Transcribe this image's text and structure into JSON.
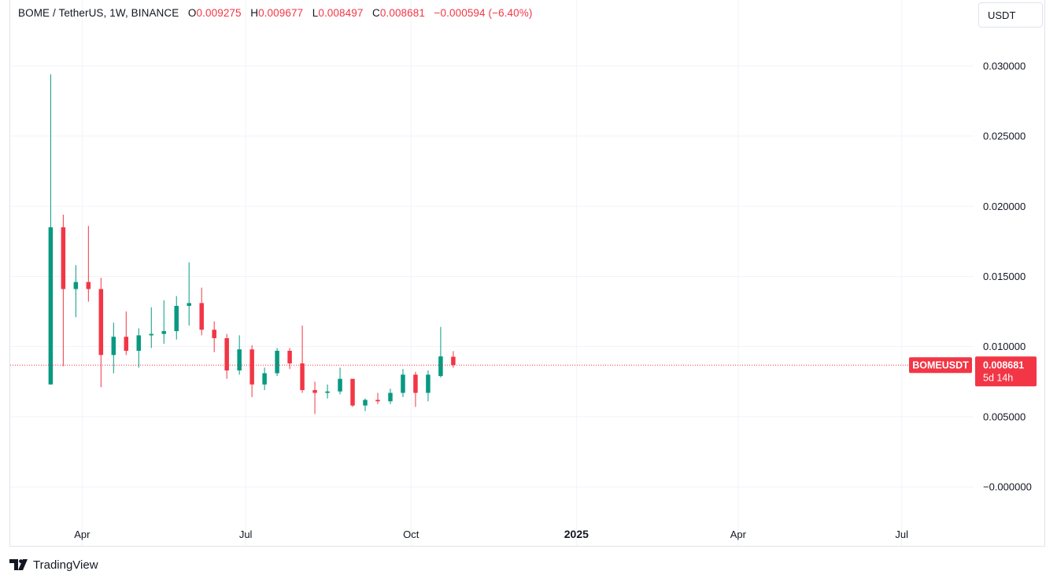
{
  "legend": {
    "symbol_line": "BOME / TetherUS, 1W, BINANCE",
    "o_label": "O",
    "o_value": "0.009275",
    "h_label": "H",
    "h_value": "0.009677",
    "l_label": "L",
    "l_value": "0.008497",
    "c_label": "C",
    "c_value": "0.008681",
    "change": "−0.000594 (−6.40%)"
  },
  "currency_button": "USDT",
  "footer": {
    "brand": "TradingView"
  },
  "colors": {
    "up": "#089981",
    "down": "#f23645",
    "grid": "#f0f3fa",
    "price_line": "#f23645"
  },
  "chart_data": {
    "type": "candlestick",
    "symbol": "BOMEUSDT",
    "interval": "1W",
    "y_ticks": [
      "0.030000",
      "0.025000",
      "0.020000",
      "0.015000",
      "0.010000",
      "0.005000",
      "−0.000000"
    ],
    "ylim": [
      -0.0042,
      0.0347
    ],
    "x_ticks": [
      {
        "label": "Apr",
        "date": "2024-04-01",
        "bold": false
      },
      {
        "label": "Jul",
        "date": "2024-07-01",
        "bold": false
      },
      {
        "label": "Oct",
        "date": "2024-10-01",
        "bold": false
      },
      {
        "label": "2025",
        "date": "2025-01-01",
        "bold": true
      },
      {
        "label": "Apr",
        "date": "2025-04-01",
        "bold": false
      },
      {
        "label": "Jul",
        "date": "2025-07-01",
        "bold": false
      }
    ],
    "xlim": [
      "2024-02-21",
      "2025-08-10"
    ],
    "last_price": {
      "label": "BOMEUSDT",
      "value": "0.008681",
      "countdown": "5d 14h",
      "price": 0.008681
    },
    "candles": [
      {
        "date": "2024-03-11",
        "o": 0.0073,
        "h": 0.0294,
        "l": 0.0073,
        "c": 0.0185
      },
      {
        "date": "2024-03-18",
        "o": 0.0185,
        "h": 0.0194,
        "l": 0.0086,
        "c": 0.0141
      },
      {
        "date": "2024-03-25",
        "o": 0.0141,
        "h": 0.0158,
        "l": 0.0121,
        "c": 0.0146
      },
      {
        "date": "2024-04-01",
        "o": 0.0146,
        "h": 0.0186,
        "l": 0.0132,
        "c": 0.0141
      },
      {
        "date": "2024-04-08",
        "o": 0.0141,
        "h": 0.0149,
        "l": 0.0071,
        "c": 0.0094
      },
      {
        "date": "2024-04-15",
        "o": 0.0094,
        "h": 0.0117,
        "l": 0.0081,
        "c": 0.0107
      },
      {
        "date": "2024-04-22",
        "o": 0.0107,
        "h": 0.0125,
        "l": 0.0094,
        "c": 0.0097
      },
      {
        "date": "2024-04-29",
        "o": 0.0097,
        "h": 0.0113,
        "l": 0.0085,
        "c": 0.0108
      },
      {
        "date": "2024-05-06",
        "o": 0.0108,
        "h": 0.0128,
        "l": 0.0099,
        "c": 0.0109
      },
      {
        "date": "2024-05-13",
        "o": 0.0109,
        "h": 0.0133,
        "l": 0.0102,
        "c": 0.0111
      },
      {
        "date": "2024-05-20",
        "o": 0.0111,
        "h": 0.0136,
        "l": 0.0105,
        "c": 0.0129
      },
      {
        "date": "2024-05-27",
        "o": 0.0129,
        "h": 0.016,
        "l": 0.0115,
        "c": 0.0131
      },
      {
        "date": "2024-06-03",
        "o": 0.0131,
        "h": 0.0142,
        "l": 0.0108,
        "c": 0.0112
      },
      {
        "date": "2024-06-10",
        "o": 0.0112,
        "h": 0.0118,
        "l": 0.0096,
        "c": 0.0106
      },
      {
        "date": "2024-06-17",
        "o": 0.0106,
        "h": 0.0109,
        "l": 0.0077,
        "c": 0.0083
      },
      {
        "date": "2024-06-24",
        "o": 0.0083,
        "h": 0.0108,
        "l": 0.008,
        "c": 0.0098
      },
      {
        "date": "2024-07-01",
        "o": 0.0098,
        "h": 0.0101,
        "l": 0.0064,
        "c": 0.0073
      },
      {
        "date": "2024-07-08",
        "o": 0.0073,
        "h": 0.0085,
        "l": 0.0069,
        "c": 0.0081
      },
      {
        "date": "2024-07-15",
        "o": 0.0081,
        "h": 0.0099,
        "l": 0.0079,
        "c": 0.0097
      },
      {
        "date": "2024-07-22",
        "o": 0.0097,
        "h": 0.0099,
        "l": 0.0084,
        "c": 0.0088
      },
      {
        "date": "2024-07-29",
        "o": 0.0088,
        "h": 0.0115,
        "l": 0.0067,
        "c": 0.0069
      },
      {
        "date": "2024-08-05",
        "o": 0.0069,
        "h": 0.0075,
        "l": 0.0052,
        "c": 0.0067
      },
      {
        "date": "2024-08-12",
        "o": 0.0067,
        "h": 0.0073,
        "l": 0.0063,
        "c": 0.0068
      },
      {
        "date": "2024-08-19",
        "o": 0.0068,
        "h": 0.0085,
        "l": 0.0066,
        "c": 0.0077
      },
      {
        "date": "2024-08-26",
        "o": 0.0077,
        "h": 0.0077,
        "l": 0.0057,
        "c": 0.0058
      },
      {
        "date": "2024-09-02",
        "o": 0.0058,
        "h": 0.0063,
        "l": 0.0054,
        "c": 0.0062
      },
      {
        "date": "2024-09-09",
        "o": 0.0062,
        "h": 0.0067,
        "l": 0.0059,
        "c": 0.0061
      },
      {
        "date": "2024-09-16",
        "o": 0.0061,
        "h": 0.007,
        "l": 0.0059,
        "c": 0.0067
      },
      {
        "date": "2024-09-23",
        "o": 0.0067,
        "h": 0.0084,
        "l": 0.0064,
        "c": 0.008
      },
      {
        "date": "2024-09-30",
        "o": 0.008,
        "h": 0.0082,
        "l": 0.0057,
        "c": 0.0067
      },
      {
        "date": "2024-10-07",
        "o": 0.0067,
        "h": 0.0083,
        "l": 0.0061,
        "c": 0.008
      },
      {
        "date": "2024-10-14",
        "o": 0.0079,
        "h": 0.0114,
        "l": 0.0078,
        "c": 0.0093
      },
      {
        "date": "2024-10-21",
        "o": 0.009275,
        "h": 0.009677,
        "l": 0.008497,
        "c": 0.008681
      }
    ]
  }
}
